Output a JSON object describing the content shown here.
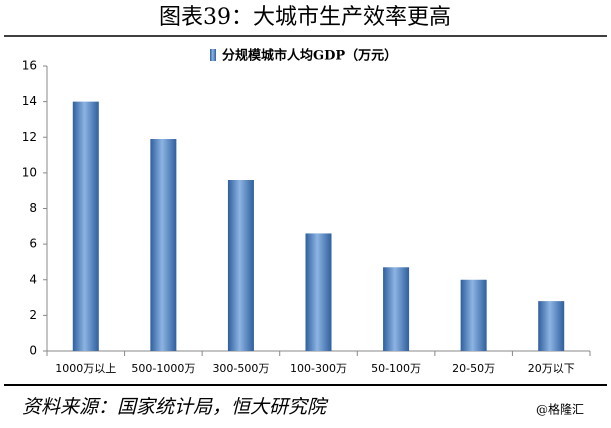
{
  "chart_data": {
    "type": "bar",
    "title": "图表39：大城市生产效率更高",
    "legend": "分规模城市人均GDP（万元）",
    "categories": [
      "1000万以上",
      "500-1000万",
      "300-500万",
      "100-300万",
      "50-100万",
      "20-50万",
      "20万以下"
    ],
    "values": [
      14.0,
      11.9,
      9.6,
      6.6,
      4.7,
      4.0,
      2.8
    ],
    "color": "#4f81bd",
    "ylim": [
      0,
      16
    ],
    "yticks": [
      0,
      2,
      4,
      6,
      8,
      10,
      12,
      14,
      16
    ],
    "grid": false,
    "source": "资料来源：国家统计局，恒大研究院",
    "watermark": "@格隆汇"
  }
}
